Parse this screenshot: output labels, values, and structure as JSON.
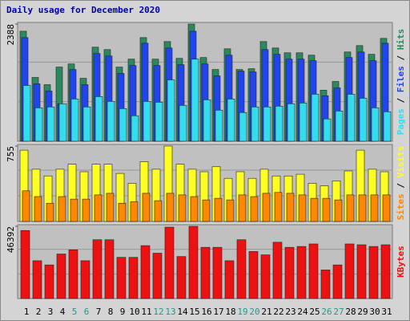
{
  "chart_data": [
    {
      "type": "bar",
      "title": "Daily usage for December 2020",
      "ylim": [
        0,
        2388
      ],
      "yticks": [
        2388
      ],
      "grid": true,
      "legend_separator": " / ",
      "series": [
        {
          "name": "Pages",
          "color": "#33ddee",
          "values": [
            1137,
            682,
            699,
            764,
            861,
            699,
            910,
            812,
            666,
            520,
            812,
            796,
            1251,
            731,
            1673,
            845,
            634,
            861,
            585,
            699,
            699,
            715,
            764,
            780,
            958,
            455,
            617,
            958,
            877,
            682,
            601
          ]
        },
        {
          "name": "Files",
          "color": "#2244ee",
          "values": [
            2112,
            1170,
            1023,
            764,
            1462,
            1153,
            1787,
            1738,
            1381,
            1543,
            1998,
            1543,
            1900,
            1560,
            2242,
            1576,
            1332,
            1754,
            1430,
            1413,
            1868,
            1771,
            1673,
            1673,
            1641,
            926,
            1088,
            1706,
            1819,
            1641,
            1998
          ]
        },
        {
          "name": "Hits",
          "color": "#2a8a5e",
          "values": [
            2242,
            1300,
            1153,
            1511,
            1576,
            1283,
            1917,
            1868,
            1511,
            1673,
            2112,
            1673,
            2031,
            1689,
            2388,
            1706,
            1462,
            1884,
            1462,
            1478,
            2031,
            1901,
            1803,
            1803,
            1754,
            1040,
            1218,
            1819,
            1949,
            1771,
            2096
          ]
        }
      ]
    },
    {
      "type": "bar",
      "ylim": [
        0,
        755
      ],
      "yticks": [
        755
      ],
      "grid": true,
      "legend_separator": " / ",
      "series": [
        {
          "name": "Sites",
          "color": "#ff8800",
          "values": [
            307,
            249,
            183,
            249,
            224,
            224,
            266,
            282,
            183,
            199,
            282,
            208,
            282,
            266,
            249,
            216,
            232,
            216,
            266,
            249,
            282,
            291,
            282,
            266,
            232,
            232,
            216,
            266,
            266,
            266,
            266
          ]
        },
        {
          "name": "Visits",
          "color": "#ffff22",
          "values": [
            714,
            523,
            456,
            523,
            573,
            498,
            573,
            573,
            481,
            382,
            598,
            523,
            755,
            573,
            523,
            498,
            548,
            432,
            498,
            432,
            523,
            456,
            456,
            473,
            382,
            357,
            407,
            506,
            714,
            523,
            498
          ]
        }
      ]
    },
    {
      "type": "bar",
      "ylim": [
        0,
        46392
      ],
      "yticks": [
        46392
      ],
      "grid": true,
      "categories": [
        "1",
        "2",
        "3",
        "4",
        "5",
        "6",
        "7",
        "8",
        "9",
        "10",
        "11",
        "12",
        "13",
        "14",
        "15",
        "16",
        "17",
        "18",
        "19",
        "20",
        "21",
        "22",
        "23",
        "24",
        "25",
        "26",
        "27",
        "28",
        "29",
        "30",
        "31"
      ],
      "category_colors": [
        "#000",
        "#000",
        "#000",
        "#000",
        "#229988",
        "#229988",
        "#000",
        "#000",
        "#000",
        "#000",
        "#000",
        "#229988",
        "#229988",
        "#000",
        "#000",
        "#000",
        "#000",
        "#000",
        "#229988",
        "#229988",
        "#000",
        "#000",
        "#000",
        "#000",
        "#000",
        "#229988",
        "#229988",
        "#000",
        "#000",
        "#000",
        "#000"
      ],
      "series": [
        {
          "name": "KBytes",
          "color": "#ee1111",
          "values": [
            43691,
            24273,
            21576,
            28588,
            31285,
            24273,
            37758,
            37758,
            26431,
            26431,
            33982,
            29128,
            45849,
            26970,
            46392,
            32903,
            32903,
            24273,
            37758,
            30206,
            28049,
            36140,
            32903,
            33443,
            35061,
            18340,
            21576,
            35061,
            34522,
            33443,
            34522
          ]
        }
      ]
    }
  ]
}
